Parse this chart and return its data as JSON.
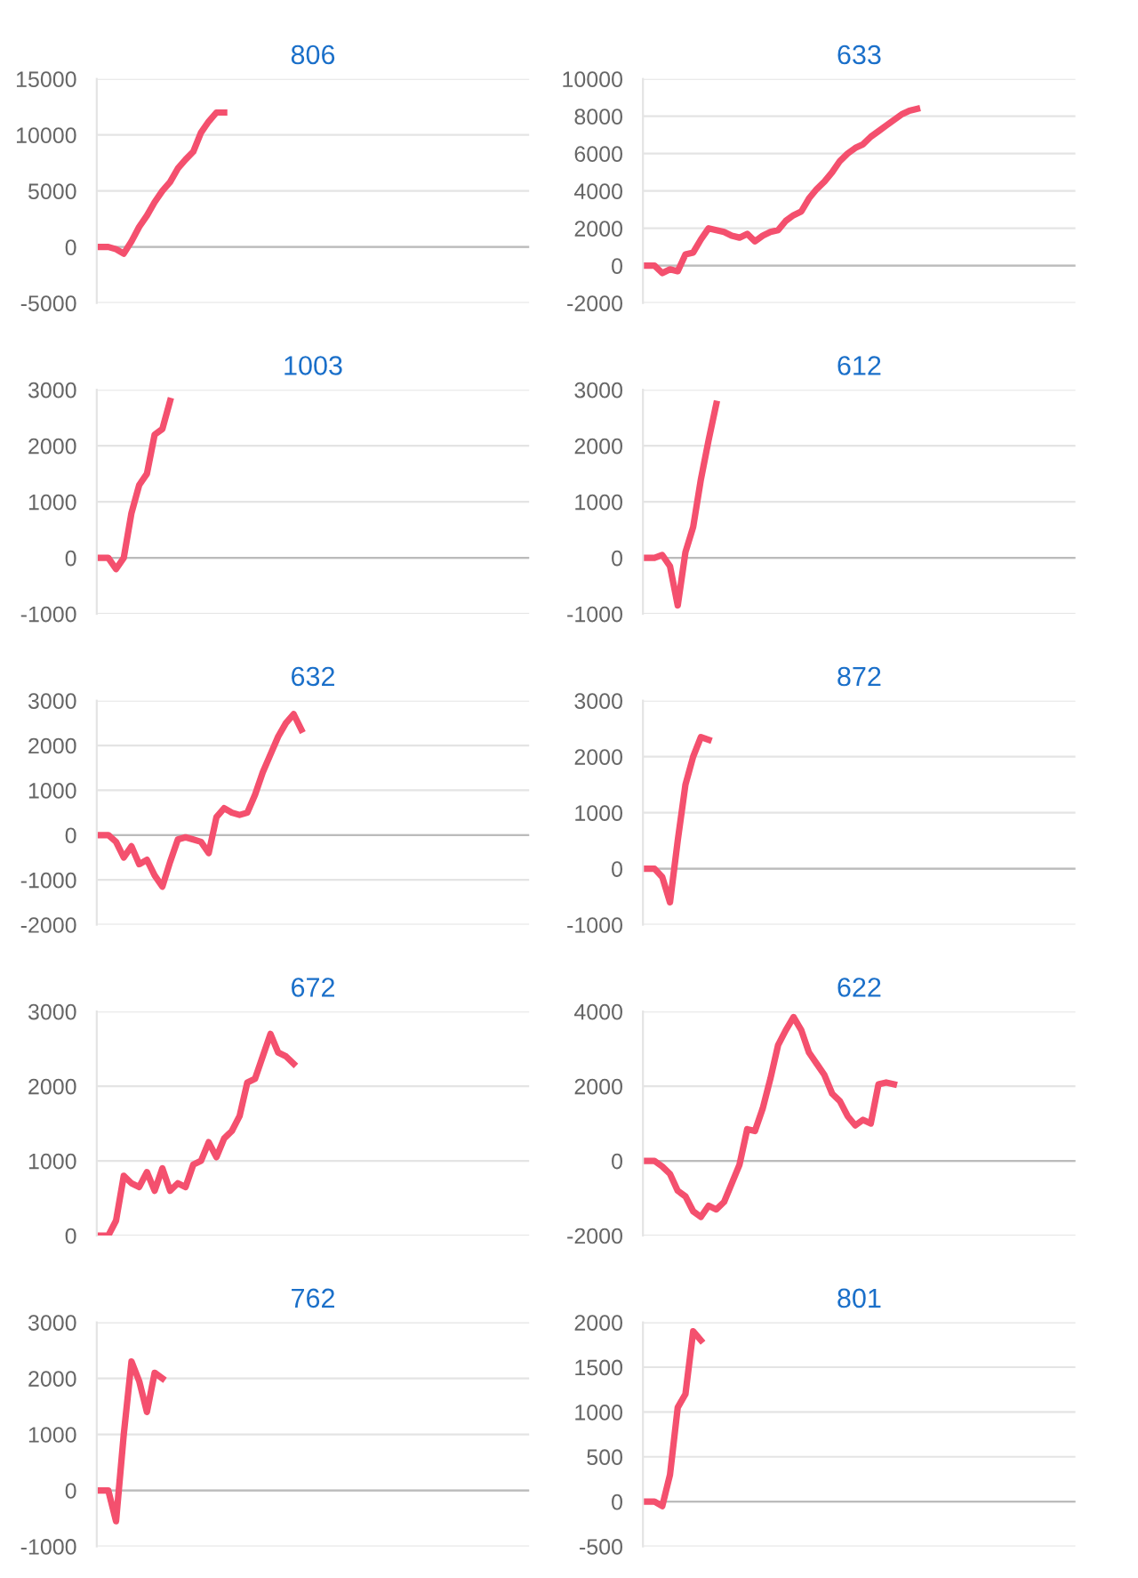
{
  "chart_data": [
    {
      "type": "line",
      "title": "806",
      "categories": [
        null,
        null,
        null,
        null,
        null,
        null,
        null,
        null,
        null,
        null,
        null,
        null,
        null,
        null,
        null,
        null,
        null,
        null,
        null,
        null,
        null,
        null,
        null,
        null,
        null,
        null,
        null,
        null,
        null,
        null,
        null,
        null,
        null,
        null,
        null,
        null,
        null,
        null,
        null,
        null,
        null,
        null,
        null,
        null,
        null,
        null,
        null,
        null,
        null,
        null,
        null,
        null,
        null,
        null,
        null,
        null
      ],
      "series": [
        {
          "color": "#f4506e",
          "values": [
            0,
            0,
            -200,
            -600,
            500,
            1800,
            2800,
            4000,
            5000,
            5800,
            7000,
            7800,
            8500,
            10200,
            11200,
            12000,
            12000,
            null,
            null,
            null,
            null,
            null,
            null,
            null,
            null,
            null,
            null,
            null,
            null,
            null,
            null,
            null,
            null,
            null,
            null,
            null,
            null,
            null,
            null,
            null,
            null,
            null,
            null,
            null,
            null,
            null,
            null,
            null,
            null,
            null,
            null,
            null,
            null,
            null,
            null,
            null
          ]
        }
      ],
      "ylim": [
        -5000,
        15000
      ],
      "yticks": [
        -5000,
        0,
        5000,
        10000,
        15000
      ],
      "grid": "y",
      "tick_labels": "y",
      "marker": "none",
      "line_style": "solid"
    },
    {
      "type": "line",
      "title": "633",
      "categories": [
        null,
        null,
        null,
        null,
        null,
        null,
        null,
        null,
        null,
        null,
        null,
        null,
        null,
        null,
        null,
        null,
        null,
        null,
        null,
        null,
        null,
        null,
        null,
        null,
        null,
        null,
        null,
        null,
        null,
        null,
        null,
        null,
        null,
        null,
        null,
        null,
        null,
        null,
        null,
        null,
        null,
        null,
        null,
        null,
        null,
        null,
        null,
        null,
        null,
        null,
        null,
        null,
        null,
        null,
        null,
        null
      ],
      "series": [
        {
          "color": "#f4506e",
          "values": [
            0,
            0,
            -400,
            -200,
            -300,
            600,
            700,
            1400,
            2000,
            1900,
            1800,
            1600,
            1500,
            1700,
            1300,
            1600,
            1800,
            1900,
            2400,
            2700,
            2900,
            3600,
            4100,
            4500,
            5000,
            5600,
            6000,
            6300,
            6500,
            6900,
            7200,
            7500,
            7800,
            8100,
            8300,
            8400,
            null,
            null,
            null,
            null,
            null,
            null,
            null,
            null,
            null,
            null,
            null,
            null,
            null,
            null,
            null,
            null,
            null,
            null,
            null,
            null
          ]
        }
      ],
      "ylim": [
        -2000,
        10000
      ],
      "yticks": [
        -2000,
        0,
        2000,
        4000,
        6000,
        8000,
        10000
      ],
      "grid": "y",
      "tick_labels": "y",
      "marker": "none",
      "line_style": "solid"
    },
    {
      "type": "line",
      "title": "1003",
      "categories": [
        null,
        null,
        null,
        null,
        null,
        null,
        null,
        null,
        null,
        null,
        null,
        null,
        null,
        null,
        null,
        null,
        null,
        null,
        null,
        null,
        null,
        null,
        null,
        null,
        null,
        null,
        null,
        null,
        null,
        null,
        null,
        null,
        null,
        null,
        null,
        null,
        null,
        null,
        null,
        null,
        null,
        null,
        null,
        null,
        null,
        null,
        null,
        null,
        null,
        null,
        null,
        null,
        null,
        null,
        null,
        null
      ],
      "series": [
        {
          "color": "#f4506e",
          "values": [
            0,
            0,
            -200,
            0,
            800,
            1300,
            1500,
            2200,
            2300,
            2800,
            null,
            null,
            null,
            null,
            null,
            null,
            null,
            null,
            null,
            null,
            null,
            null,
            null,
            null,
            null,
            null,
            null,
            null,
            null,
            null,
            null,
            null,
            null,
            null,
            null,
            null,
            null,
            null,
            null,
            null,
            null,
            null,
            null,
            null,
            null,
            null,
            null,
            null,
            null,
            null,
            null,
            null,
            null,
            null,
            null,
            null
          ]
        }
      ],
      "ylim": [
        -1000,
        3000
      ],
      "yticks": [
        -1000,
        0,
        1000,
        2000,
        3000
      ],
      "grid": "y",
      "tick_labels": "y",
      "marker": "none",
      "line_style": "solid"
    },
    {
      "type": "line",
      "title": "612",
      "categories": [
        null,
        null,
        null,
        null,
        null,
        null,
        null,
        null,
        null,
        null,
        null,
        null,
        null,
        null,
        null,
        null,
        null,
        null,
        null,
        null,
        null,
        null,
        null,
        null,
        null,
        null,
        null,
        null,
        null,
        null,
        null,
        null,
        null,
        null,
        null,
        null,
        null,
        null,
        null,
        null,
        null,
        null,
        null,
        null,
        null,
        null,
        null,
        null,
        null,
        null,
        null,
        null,
        null,
        null,
        null,
        null
      ],
      "series": [
        {
          "color": "#f4506e",
          "values": [
            0,
            0,
            50,
            -150,
            -850,
            100,
            550,
            1400,
            2100,
            2750,
            null,
            null,
            null,
            null,
            null,
            null,
            null,
            null,
            null,
            null,
            null,
            null,
            null,
            null,
            null,
            null,
            null,
            null,
            null,
            null,
            null,
            null,
            null,
            null,
            null,
            null,
            null,
            null,
            null,
            null,
            null,
            null,
            null,
            null,
            null,
            null,
            null,
            null,
            null,
            null,
            null,
            null,
            null,
            null,
            null,
            null
          ]
        }
      ],
      "ylim": [
        -1000,
        3000
      ],
      "yticks": [
        -1000,
        0,
        1000,
        2000,
        3000
      ],
      "grid": "y",
      "tick_labels": "y",
      "marker": "none",
      "line_style": "solid"
    },
    {
      "type": "line",
      "title": "632",
      "categories": [
        null,
        null,
        null,
        null,
        null,
        null,
        null,
        null,
        null,
        null,
        null,
        null,
        null,
        null,
        null,
        null,
        null,
        null,
        null,
        null,
        null,
        null,
        null,
        null,
        null,
        null,
        null,
        null,
        null,
        null,
        null,
        null,
        null,
        null,
        null,
        null,
        null,
        null,
        null,
        null,
        null,
        null,
        null,
        null,
        null,
        null,
        null,
        null,
        null,
        null,
        null,
        null,
        null,
        null,
        null,
        null
      ],
      "series": [
        {
          "color": "#f4506e",
          "values": [
            0,
            0,
            -150,
            -500,
            -250,
            -650,
            -550,
            -900,
            -1150,
            -600,
            -100,
            -50,
            -100,
            -150,
            -400,
            400,
            600,
            500,
            450,
            500,
            900,
            1400,
            1800,
            2200,
            2500,
            2700,
            2350,
            null,
            null,
            null,
            null,
            null,
            null,
            null,
            null,
            null,
            null,
            null,
            null,
            null,
            null,
            null,
            null,
            null,
            null,
            null,
            null,
            null,
            null,
            null,
            null,
            null,
            null,
            null,
            null,
            null
          ]
        }
      ],
      "ylim": [
        -2000,
        3000
      ],
      "yticks": [
        -2000,
        -1000,
        0,
        1000,
        2000,
        3000
      ],
      "grid": "y",
      "tick_labels": "y",
      "marker": "none",
      "line_style": "solid"
    },
    {
      "type": "line",
      "title": "872",
      "categories": [
        null,
        null,
        null,
        null,
        null,
        null,
        null,
        null,
        null,
        null,
        null,
        null,
        null,
        null,
        null,
        null,
        null,
        null,
        null,
        null,
        null,
        null,
        null,
        null,
        null,
        null,
        null,
        null,
        null,
        null,
        null,
        null,
        null,
        null,
        null,
        null,
        null,
        null,
        null,
        null,
        null,
        null,
        null,
        null,
        null,
        null,
        null,
        null,
        null,
        null,
        null,
        null,
        null,
        null,
        null,
        null
      ],
      "series": [
        {
          "color": "#f4506e",
          "values": [
            0,
            0,
            -150,
            -600,
            500,
            1500,
            2000,
            2350,
            2300,
            null,
            null,
            null,
            null,
            null,
            null,
            null,
            null,
            null,
            null,
            null,
            null,
            null,
            null,
            null,
            null,
            null,
            null,
            null,
            null,
            null,
            null,
            null,
            null,
            null,
            null,
            null,
            null,
            null,
            null,
            null,
            null,
            null,
            null,
            null,
            null,
            null,
            null,
            null,
            null,
            null,
            null,
            null,
            null,
            null,
            null,
            null
          ]
        }
      ],
      "ylim": [
        -1000,
        3000
      ],
      "yticks": [
        -1000,
        0,
        1000,
        2000,
        3000
      ],
      "grid": "y",
      "tick_labels": "y",
      "marker": "none",
      "line_style": "solid"
    },
    {
      "type": "line",
      "title": "672",
      "categories": [
        null,
        null,
        null,
        null,
        null,
        null,
        null,
        null,
        null,
        null,
        null,
        null,
        null,
        null,
        null,
        null,
        null,
        null,
        null,
        null,
        null,
        null,
        null,
        null,
        null,
        null,
        null,
        null,
        null,
        null,
        null,
        null,
        null,
        null,
        null,
        null,
        null,
        null,
        null,
        null,
        null,
        null,
        null,
        null,
        null,
        null,
        null,
        null,
        null,
        null,
        null,
        null,
        null,
        null,
        null,
        null
      ],
      "series": [
        {
          "color": "#f4506e",
          "values": [
            0,
            0,
            200,
            800,
            700,
            650,
            850,
            600,
            900,
            600,
            700,
            650,
            950,
            1000,
            1250,
            1050,
            1300,
            1400,
            1600,
            2050,
            2100,
            2400,
            2700,
            2450,
            2400,
            2300,
            null,
            null,
            null,
            null,
            null,
            null,
            null,
            null,
            null,
            null,
            null,
            null,
            null,
            null,
            null,
            null,
            null,
            null,
            null,
            null,
            null,
            null,
            null,
            null,
            null,
            null,
            null,
            null,
            null,
            null
          ]
        }
      ],
      "ylim": [
        0,
        3000
      ],
      "yticks": [
        0,
        1000,
        2000,
        3000
      ],
      "grid": "y",
      "tick_labels": "y",
      "marker": "none",
      "line_style": "solid"
    },
    {
      "type": "line",
      "title": "622",
      "categories": [
        null,
        null,
        null,
        null,
        null,
        null,
        null,
        null,
        null,
        null,
        null,
        null,
        null,
        null,
        null,
        null,
        null,
        null,
        null,
        null,
        null,
        null,
        null,
        null,
        null,
        null,
        null,
        null,
        null,
        null,
        null,
        null,
        null,
        null,
        null,
        null,
        null,
        null,
        null,
        null,
        null,
        null,
        null,
        null,
        null,
        null,
        null,
        null,
        null,
        null,
        null,
        null,
        null,
        null,
        null,
        null
      ],
      "series": [
        {
          "color": "#f4506e",
          "values": [
            0,
            0,
            -150,
            -350,
            -800,
            -950,
            -1350,
            -1500,
            -1200,
            -1300,
            -1100,
            -600,
            -100,
            850,
            800,
            1400,
            2200,
            3100,
            3500,
            3850,
            3500,
            2900,
            2600,
            2300,
            1800,
            1600,
            1200,
            950,
            1100,
            1000,
            2050,
            2100,
            2050,
            null,
            null,
            null,
            null,
            null,
            null,
            null,
            null,
            null,
            null,
            null,
            null,
            null,
            null,
            null,
            null,
            null,
            null,
            null,
            null,
            null,
            null,
            null
          ]
        }
      ],
      "ylim": [
        -2000,
        4000
      ],
      "yticks": [
        -2000,
        0,
        2000,
        4000
      ],
      "grid": "y",
      "tick_labels": "y",
      "marker": "none",
      "line_style": "solid"
    },
    {
      "type": "line",
      "title": "762",
      "categories": [
        null,
        null,
        null,
        null,
        null,
        null,
        null,
        null,
        null,
        null,
        null,
        null,
        null,
        null,
        null,
        null,
        null,
        null,
        null,
        null,
        null,
        null,
        null,
        null,
        null,
        null,
        null,
        null,
        null,
        null,
        null,
        null,
        null,
        null,
        null,
        null,
        null,
        null,
        null,
        null,
        null,
        null,
        null,
        null,
        null,
        null,
        null,
        null,
        null,
        null,
        null,
        null,
        null,
        null,
        null,
        null
      ],
      "series": [
        {
          "color": "#f4506e",
          "values": [
            0,
            0,
            -550,
            1000,
            2300,
            1950,
            1400,
            2100,
            2000,
            null,
            null,
            null,
            null,
            null,
            null,
            null,
            null,
            null,
            null,
            null,
            null,
            null,
            null,
            null,
            null,
            null,
            null,
            null,
            null,
            null,
            null,
            null,
            null,
            null,
            null,
            null,
            null,
            null,
            null,
            null,
            null,
            null,
            null,
            null,
            null,
            null,
            null,
            null,
            null,
            null,
            null,
            null,
            null,
            null,
            null,
            null
          ]
        }
      ],
      "ylim": [
        -1000,
        3000
      ],
      "yticks": [
        -1000,
        0,
        1000,
        2000,
        3000
      ],
      "grid": "y",
      "tick_labels": "y",
      "marker": "none",
      "line_style": "solid"
    },
    {
      "type": "line",
      "title": "801",
      "categories": [
        null,
        null,
        null,
        null,
        null,
        null,
        null,
        null,
        null,
        null,
        null,
        null,
        null,
        null,
        null,
        null,
        null,
        null,
        null,
        null,
        null,
        null,
        null,
        null,
        null,
        null,
        null,
        null,
        null,
        null,
        null,
        null,
        null,
        null,
        null,
        null,
        null,
        null,
        null,
        null,
        null,
        null,
        null,
        null,
        null,
        null,
        null,
        null,
        null,
        null,
        null,
        null,
        null,
        null,
        null,
        null
      ],
      "series": [
        {
          "color": "#f4506e",
          "values": [
            0,
            0,
            -50,
            300,
            1050,
            1200,
            1900,
            1800,
            null,
            null,
            null,
            null,
            null,
            null,
            null,
            null,
            null,
            null,
            null,
            null,
            null,
            null,
            null,
            null,
            null,
            null,
            null,
            null,
            null,
            null,
            null,
            null,
            null,
            null,
            null,
            null,
            null,
            null,
            null,
            null,
            null,
            null,
            null,
            null,
            null,
            null,
            null,
            null,
            null,
            null,
            null,
            null,
            null,
            null,
            null,
            null
          ]
        }
      ],
      "ylim": [
        -500,
        2000
      ],
      "yticks": [
        -500,
        0,
        500,
        1000,
        1500,
        2000
      ],
      "grid": "y",
      "tick_labels": "y",
      "marker": "none",
      "line_style": "solid"
    }
  ]
}
